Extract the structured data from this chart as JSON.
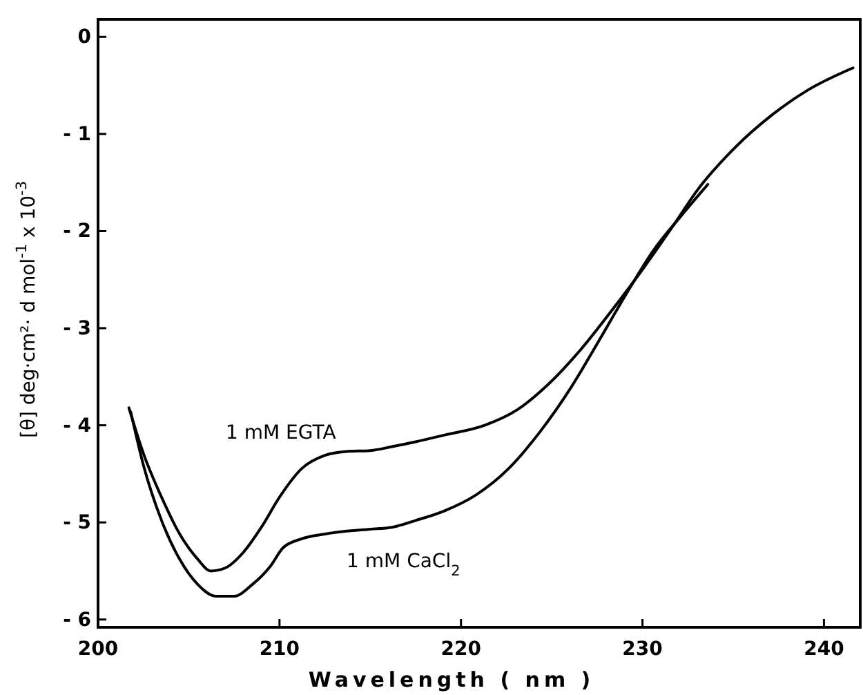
{
  "chart_data": {
    "type": "line",
    "xlabel": "Wavelength  ( nm )",
    "ylabel": "[θ]   deg·cm²· d mol$^{-1}$ x 10$^{-3}$",
    "xlim": [
      200,
      242
    ],
    "ylim": [
      -6.08,
      0.18
    ],
    "xticks": [
      200,
      210,
      220,
      230,
      240
    ],
    "yticks": [
      0,
      -1,
      -2,
      -3,
      -4,
      -5,
      -6
    ],
    "grid": false,
    "marker": "none",
    "line_style": "solid",
    "series": [
      {
        "name": "1 mM EGTA",
        "color": "#000000",
        "x": [
          201.7,
          202.5,
          203.5,
          204.5,
          205.5,
          206.2,
          207,
          208,
          209,
          210,
          211.2,
          212.5,
          213.7,
          215,
          216.2,
          217.5,
          219.1,
          221.3,
          223.1,
          224.8,
          226.6,
          228.3,
          230.1,
          231.6,
          233.1,
          235.1,
          237.1,
          239.1,
          241.6
        ],
        "values": [
          -3.82,
          -4.29,
          -4.74,
          -5.12,
          -5.38,
          -5.5,
          -5.47,
          -5.31,
          -5.05,
          -4.74,
          -4.45,
          -4.31,
          -4.27,
          -4.26,
          -4.22,
          -4.17,
          -4.1,
          -4,
          -3.84,
          -3.58,
          -3.22,
          -2.82,
          -2.37,
          -1.97,
          -1.56,
          -1.14,
          -0.81,
          -0.55,
          -0.32
        ]
      },
      {
        "name": "1 mM CaCl$_{2}$",
        "color": "#000000",
        "x": [
          201.8,
          202.5,
          203.5,
          204.5,
          205.5,
          206.5,
          207.5,
          208.5,
          209.5,
          210.2,
          211.2,
          212.5,
          213.7,
          215,
          216.2,
          217.5,
          219.1,
          220.8,
          222.6,
          224.3,
          226.1,
          227.6,
          229.1,
          230.6,
          232.1,
          233.6
        ],
        "values": [
          -3.86,
          -4.41,
          -4.98,
          -5.38,
          -5.64,
          -5.76,
          -5.76,
          -5.64,
          -5.45,
          -5.26,
          -5.17,
          -5.12,
          -5.09,
          -5.07,
          -5.05,
          -4.98,
          -4.88,
          -4.72,
          -4.45,
          -4.08,
          -3.6,
          -3.13,
          -2.65,
          -2.2,
          -1.85,
          -1.52
        ]
      }
    ]
  }
}
